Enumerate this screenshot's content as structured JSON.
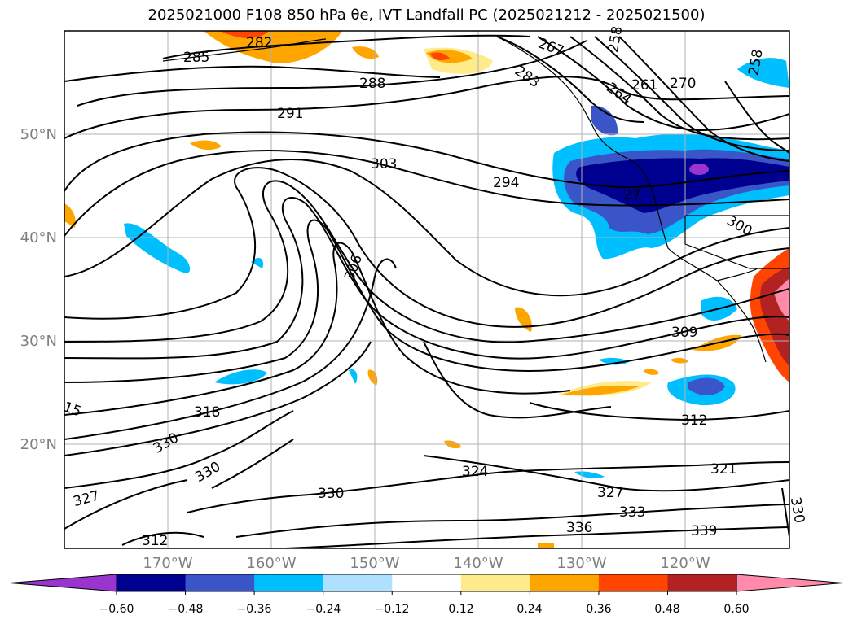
{
  "title": "2025021000 F108 850 hPa θe, IVT Landfall PC (2025021212 - 2025021500)",
  "lat_labels": [
    "50°N",
    "40°N",
    "30°N",
    "20°N"
  ],
  "lon_labels": [
    "170°W",
    "160°W",
    "150°W",
    "140°W",
    "130°W",
    "120°W"
  ],
  "contour_labels": [
    "285",
    "282",
    "288",
    "291",
    "303",
    "294",
    "306",
    "309",
    "312",
    "318",
    "330",
    "330",
    "327",
    "330",
    "324",
    "327",
    "333",
    "336",
    "339",
    "321",
    "330",
    "258",
    "258",
    "261",
    "264",
    "267",
    "270",
    "283",
    "27",
    "300",
    "15",
    "312"
  ],
  "colorbar": {
    "ticks": [
      "−0.60",
      "−0.48",
      "−0.36",
      "−0.24",
      "−0.12",
      "0.12",
      "0.24",
      "0.36",
      "0.48",
      "0.60"
    ],
    "colors": [
      "#9a34cf",
      "#000090",
      "#3a55c8",
      "#00bfff",
      "#aee0ff",
      "#ffffff",
      "#ffeb8a",
      "#ffa500",
      "#ff4500",
      "#b22222",
      "#ff8aaa"
    ]
  },
  "chart_data": {
    "type": "map",
    "projection": "equirectangular",
    "lon_range": [
      -180,
      -110
    ],
    "lat_range": [
      10,
      60
    ],
    "grid": true,
    "fields": [
      "850 hPa theta-e contours (K)",
      "IVT landfall PC shading"
    ]
  }
}
